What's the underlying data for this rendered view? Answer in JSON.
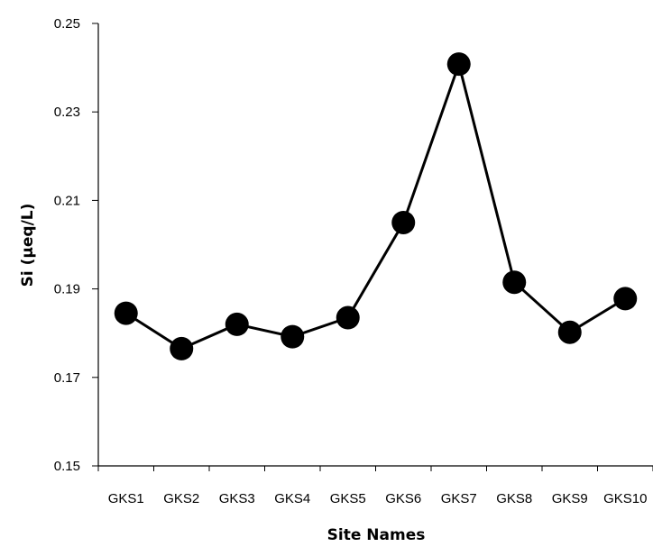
{
  "chart_data": {
    "type": "line",
    "xlabel": "Site Names",
    "ylabel": "Si (µeq/L)",
    "categories": [
      "GKS1",
      "GKS2",
      "GKS3",
      "GKS4",
      "GKS5",
      "GKS6",
      "GKS7",
      "GKS8",
      "GKS9",
      "GKS10"
    ],
    "series": [
      {
        "values": [
          0.1845,
          0.1765,
          0.182,
          0.1792,
          0.1835,
          0.205,
          0.2408,
          0.1915,
          0.1802,
          0.1878
        ]
      }
    ],
    "ylim": [
      0.15,
      0.25
    ],
    "yticks": [
      "0.15",
      "0.17",
      "0.19",
      "0.21",
      "0.23",
      "0.25"
    ],
    "grid": false,
    "legend": "none",
    "colors": {
      "line": "#000000",
      "marker": "#000000",
      "axis": "#000000"
    }
  }
}
